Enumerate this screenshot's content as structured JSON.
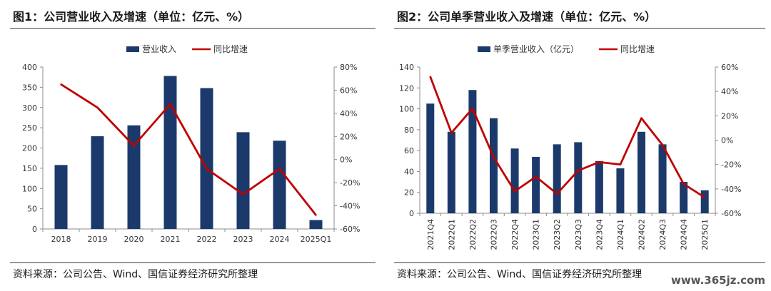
{
  "charts": [
    {
      "title": "图1：公司营业收入及增速（单位：亿元、%）",
      "source": "资料来源：公司公告、Wind、国信证券经济研究所整理",
      "legend_bar": "营业收入",
      "legend_line": "同比增速",
      "chart_data": {
        "type": "bar",
        "categories": [
          "2018",
          "2019",
          "2020",
          "2021",
          "2022",
          "2023",
          "2024",
          "2025Q1"
        ],
        "series": [
          {
            "name": "营业收入",
            "type": "bar",
            "axis": "left",
            "values": [
              158,
              229,
              256,
              378,
              348,
              239,
              218,
              22
            ]
          },
          {
            "name": "同比增速",
            "type": "line",
            "axis": "right",
            "values": [
              65,
              45,
              12,
              48,
              -8,
              -30,
              -8,
              -48
            ]
          }
        ],
        "y_left": {
          "min": 0,
          "max": 400,
          "step": 50,
          "ticks": [
            "0",
            "50",
            "100",
            "150",
            "200",
            "250",
            "300",
            "350",
            "400"
          ]
        },
        "y_right": {
          "min": -60,
          "max": 80,
          "step": 20,
          "ticks": [
            "-60%",
            "-40%",
            "-20%",
            "0%",
            "20%",
            "40%",
            "60%",
            "80%"
          ]
        },
        "legend_position": "top-center",
        "grid": false,
        "xlabel_rotation": "horizontal"
      }
    },
    {
      "title": "图2：公司单季营业收入及增速（单位：亿元、%）",
      "source": "资料来源：公司公告、Wind、国信证券经济研究所整理",
      "legend_bar": "单季营业收入（亿元）",
      "legend_line": "同比增速",
      "chart_data": {
        "type": "bar",
        "categories": [
          "2021Q4",
          "2022Q1",
          "2022Q2",
          "2022Q3",
          "2022Q4",
          "2023Q1",
          "2023Q2",
          "2023Q3",
          "2023Q4",
          "2024Q1",
          "2024Q2",
          "2024Q3",
          "2024Q4",
          "2025Q1"
        ],
        "series": [
          {
            "name": "单季营业收入（亿元）",
            "type": "bar",
            "axis": "left",
            "values": [
              105,
              78,
              118,
              91,
              62,
              54,
              66,
              68,
              50,
              43,
              78,
              66,
              30,
              22
            ]
          },
          {
            "name": "同比增速",
            "type": "line",
            "axis": "right",
            "values": [
              52,
              6,
              26,
              -14,
              -42,
              -30,
              -44,
              -25,
              -18,
              -20,
              18,
              -4,
              -36,
              -47
            ]
          }
        ],
        "y_left": {
          "min": 0,
          "max": 140,
          "step": 20,
          "ticks": [
            "0",
            "20",
            "40",
            "60",
            "80",
            "100",
            "120",
            "140"
          ]
        },
        "y_right": {
          "min": -60,
          "max": 60,
          "step": 20,
          "ticks": [
            "-60%",
            "-40%",
            "-20%",
            "0%",
            "20%",
            "40%",
            "60%"
          ]
        },
        "legend_position": "top-center",
        "grid": false,
        "xlabel_rotation": "vertical"
      }
    }
  ],
  "colors": {
    "bar": "#1B3A6B",
    "line": "#C00000",
    "axis": "#8C8C8C",
    "text": "#333333"
  },
  "watermark": "www.365jz.com"
}
